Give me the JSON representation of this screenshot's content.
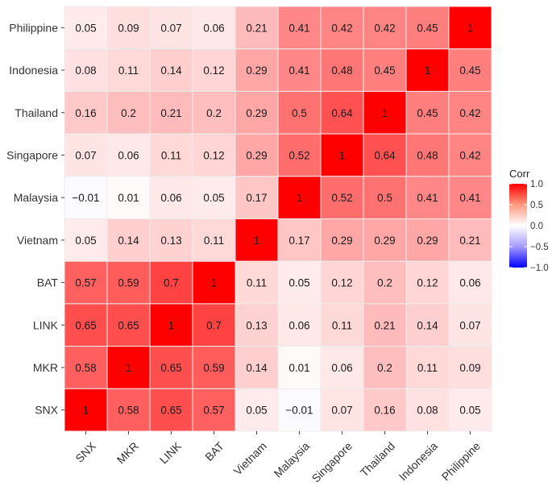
{
  "chart_data": {
    "type": "heatmap",
    "title": "",
    "xlabel": "",
    "ylabel": "",
    "variables": [
      "SNX",
      "MKR",
      "LINK",
      "BAT",
      "Vietnam",
      "Malaysia",
      "Singapore",
      "Thailand",
      "Indonesia",
      "Philippine"
    ],
    "x_categories": [
      "SNX",
      "MKR",
      "LINK",
      "BAT",
      "Vietnam",
      "Malaysia",
      "Singapore",
      "Thailand",
      "Indonesia",
      "Philippine"
    ],
    "y_categories_top_to_bottom": [
      "Philippine",
      "Indonesia",
      "Thailand",
      "Singapore",
      "Malaysia",
      "Vietnam",
      "BAT",
      "LINK",
      "MKR",
      "SNX"
    ],
    "values": [
      [
        1,
        0.58,
        0.65,
        0.57,
        0.05,
        -0.01,
        0.07,
        0.16,
        0.08,
        0.05
      ],
      [
        0.58,
        1,
        0.65,
        0.59,
        0.14,
        0.01,
        0.06,
        0.2,
        0.11,
        0.09
      ],
      [
        0.65,
        0.65,
        1,
        0.7,
        0.13,
        0.06,
        0.11,
        0.21,
        0.14,
        0.07
      ],
      [
        0.57,
        0.59,
        0.7,
        1,
        0.11,
        0.05,
        0.12,
        0.2,
        0.12,
        0.06
      ],
      [
        0.05,
        0.14,
        0.13,
        0.11,
        1,
        0.17,
        0.29,
        0.29,
        0.29,
        0.21
      ],
      [
        -0.01,
        0.01,
        0.06,
        0.05,
        0.17,
        1,
        0.52,
        0.5,
        0.41,
        0.41
      ],
      [
        0.07,
        0.06,
        0.11,
        0.12,
        0.29,
        0.52,
        1,
        0.64,
        0.48,
        0.42
      ],
      [
        0.16,
        0.2,
        0.21,
        0.2,
        0.29,
        0.5,
        0.64,
        1,
        0.45,
        0.42
      ],
      [
        0.08,
        0.11,
        0.14,
        0.12,
        0.29,
        0.41,
        0.48,
        0.45,
        1,
        0.45
      ],
      [
        0.05,
        0.09,
        0.07,
        0.06,
        0.21,
        0.41,
        0.42,
        0.42,
        0.45,
        1
      ]
    ],
    "value_labels_note": "values[i][j] = correlation between variables[i] and variables[j]",
    "color_scale": {
      "low": "#0000FF",
      "mid": "#FFFFFF",
      "high": "#FF0000",
      "limits": [
        -1.0,
        1.0
      ]
    },
    "legend": {
      "title": "Corr",
      "ticks": [
        "1.0",
        "0.5",
        "0.0",
        "−0.5",
        "−1.0"
      ],
      "tick_values": [
        1.0,
        0.5,
        0.0,
        -0.5,
        -1.0
      ],
      "placement": "right"
    },
    "grid": true,
    "panel_background": "#EBEBEB"
  }
}
